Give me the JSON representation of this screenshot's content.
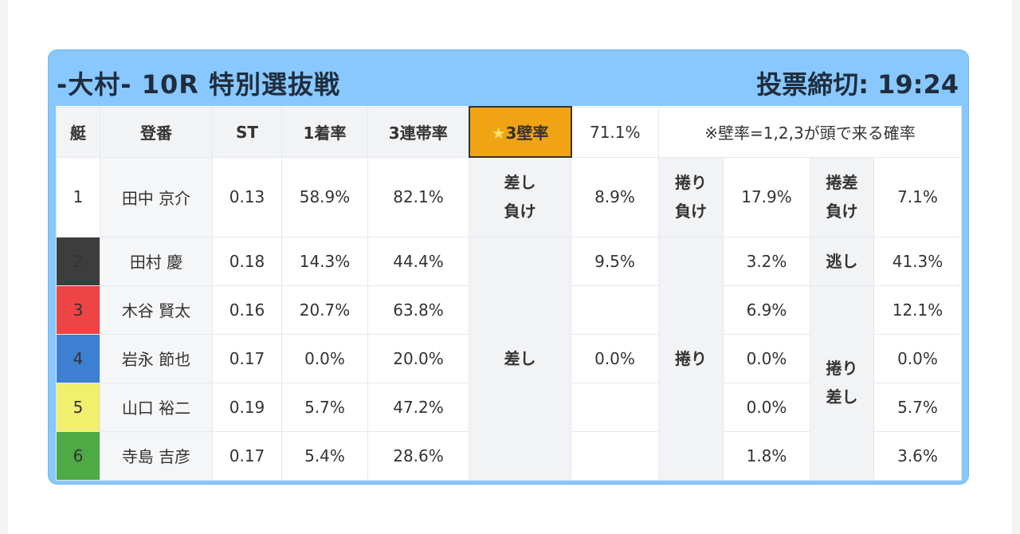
{
  "header": {
    "title": "-大村- 10R 特別選抜戦",
    "deadline": "投票締切: 19:24"
  },
  "columns": {
    "boat": "艇",
    "name": "登番",
    "st": "ST",
    "first_rate": "1着率",
    "top3_rate": "3連帯率",
    "wall_rate_label": "3壁率",
    "wall_rate_value": "71.1%",
    "note": "※壁率=1,2,3が頭で来る確率"
  },
  "colors": {
    "boat1": "#ffffff",
    "boat2": "#3d3d3d",
    "boat3": "#ee4444",
    "boat4": "#3d7fd1",
    "boat5": "#f2ee6e",
    "boat6": "#4daa45",
    "accent": "#f0a414",
    "frame": "#88c8ff"
  },
  "star_icon": "★",
  "rows": [
    {
      "boat": "1",
      "name": "田中 京介",
      "st": "0.13",
      "first": "58.9%",
      "top3": "82.1%"
    },
    {
      "boat": "2",
      "name": "田村 慶",
      "st": "0.18",
      "first": "14.3%",
      "top3": "44.4%"
    },
    {
      "boat": "3",
      "name": "木谷 賢太",
      "st": "0.16",
      "first": "20.7%",
      "top3": "63.8%"
    },
    {
      "boat": "4",
      "name": "岩永 節也",
      "st": "0.17",
      "first": "0.0%",
      "top3": "20.0%"
    },
    {
      "boat": "5",
      "name": "山口 裕二",
      "st": "0.19",
      "first": "5.7%",
      "top3": "47.2%"
    },
    {
      "boat": "6",
      "name": "寺島 吉彦",
      "st": "0.17",
      "first": "5.4%",
      "top3": "28.6%"
    }
  ],
  "groupA": {
    "label_top_l1": "差し",
    "label_top_l2": "負け",
    "label_rest": "差し",
    "values": [
      "8.9%",
      "9.5%",
      "",
      "0.0%",
      "",
      ""
    ]
  },
  "groupB": {
    "label_top_l1": "捲り",
    "label_top_l2": "負け",
    "label_rest": "捲り",
    "values": [
      "17.9%",
      "3.2%",
      "6.9%",
      "0.0%",
      "0.0%",
      "1.8%"
    ]
  },
  "groupC": {
    "label_top_l1": "捲差",
    "label_top_l2": "負け",
    "label_mid": "逃し",
    "label_rest_l1": "捲り",
    "label_rest_l2": "差し",
    "values": [
      "7.1%",
      "41.3%",
      "12.1%",
      "0.0%",
      "5.7%",
      "3.6%"
    ]
  }
}
